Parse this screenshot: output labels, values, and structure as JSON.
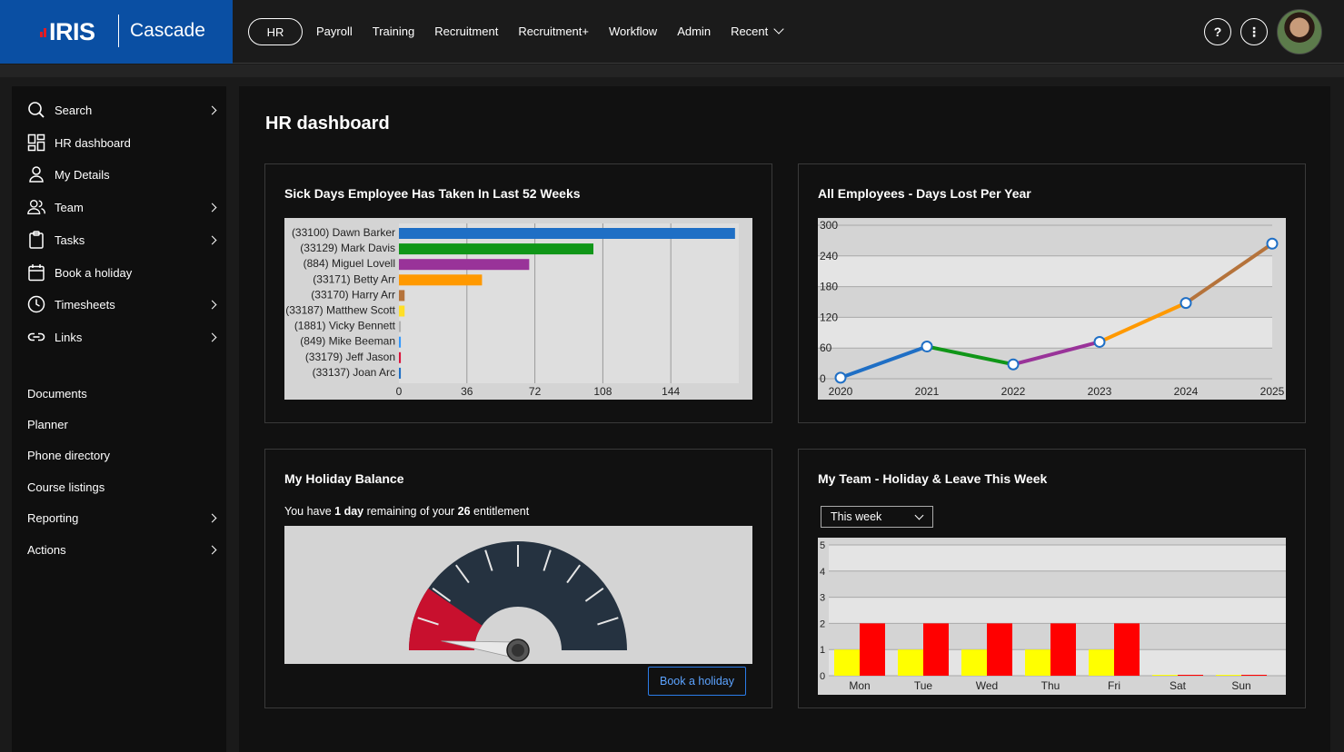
{
  "brand": {
    "logo": "IRIS",
    "product": "Cascade"
  },
  "nav": {
    "items": [
      "HR",
      "Payroll",
      "Training",
      "Recruitment",
      "Recruitment+",
      "Workflow",
      "Admin",
      "Recent"
    ],
    "active": "HR"
  },
  "top_icons": {
    "help": "?",
    "more": "⋮"
  },
  "sidebar": {
    "items": [
      {
        "label": "Search",
        "icon": "search-icon",
        "arrow": true
      },
      {
        "label": "HR dashboard",
        "icon": "dashboard-icon",
        "arrow": false
      },
      {
        "label": "My Details",
        "icon": "user-icon",
        "arrow": false
      },
      {
        "label": "Team",
        "icon": "team-icon",
        "arrow": true
      },
      {
        "label": "Tasks",
        "icon": "clipboard-icon",
        "arrow": true
      },
      {
        "label": "Book a holiday",
        "icon": "calendar-icon",
        "arrow": false
      },
      {
        "label": "Timesheets",
        "icon": "clock-icon",
        "arrow": true
      },
      {
        "label": "Links",
        "icon": "link-icon",
        "arrow": true
      }
    ],
    "plain": [
      {
        "label": "Documents",
        "arrow": false
      },
      {
        "label": "Planner",
        "arrow": false
      },
      {
        "label": "Phone directory",
        "arrow": false
      },
      {
        "label": "Course listings",
        "arrow": false
      },
      {
        "label": "Reporting",
        "arrow": true
      },
      {
        "label": "Actions",
        "arrow": true
      }
    ]
  },
  "page": {
    "title": "HR dashboard"
  },
  "cards": {
    "sick": {
      "title": "Sick Days Employee Has Taken In Last 52 Weeks"
    },
    "lost": {
      "title": "All Employees - Days Lost Per Year"
    },
    "balance": {
      "title": "My Holiday Balance",
      "text_prefix": "You have ",
      "days": "1 day",
      "text_mid": " remaining of your ",
      "entitlement": "26",
      "text_suffix": " entitlement",
      "book_label": "Book a holiday"
    },
    "team": {
      "title": "My Team - Holiday & Leave This Week",
      "select_value": "This week"
    }
  },
  "chart_data": [
    {
      "type": "bar",
      "orientation": "horizontal",
      "categories": [
        "(33100) Dawn Barker",
        "(33129) Mark Davis",
        "(884) Miguel Lovell",
        "(33171) Betty Arr",
        "(33170) Harry Arr",
        "(33187) Matthew Scott",
        "(1881) Vicky Bennett",
        "(849) Mike Beeman",
        "(33179) Jeff Jason",
        "(33137) Joan Arc"
      ],
      "values": [
        178,
        103,
        69,
        44,
        3,
        3,
        1,
        1,
        1,
        1
      ],
      "colors": [
        "#1f6fc5",
        "#109618",
        "#993399",
        "#ff9900",
        "#b5733b",
        "#ffdf26",
        "#b0b0b0",
        "#3399ff",
        "#dc143c",
        "#1f6fc5"
      ],
      "xticks": [
        0,
        36,
        72,
        108,
        144
      ],
      "xlim": [
        0,
        180
      ]
    },
    {
      "type": "line",
      "x": [
        "2020",
        "2021",
        "2022",
        "2023",
        "2024",
        "2025"
      ],
      "values": [
        2,
        63,
        28,
        72,
        148,
        264
      ],
      "segment_colors": [
        "#1f6fc5",
        "#109618",
        "#993399",
        "#ff9900",
        "#b5733b"
      ],
      "yticks": [
        0,
        60,
        120,
        180,
        240,
        300
      ],
      "ylim": [
        0,
        300
      ]
    },
    {
      "type": "gauge",
      "value": 1,
      "max": 26,
      "red_band": [
        0,
        5
      ],
      "colors": {
        "dial": "#253240",
        "band": "#c8102e"
      }
    },
    {
      "type": "bar",
      "categories": [
        "Mon",
        "Tue",
        "Wed",
        "Thu",
        "Fri",
        "Sat",
        "Sun"
      ],
      "series": [
        {
          "values": [
            1,
            1,
            1,
            1,
            1,
            0,
            0
          ],
          "color": "#ffff00"
        },
        {
          "values": [
            2,
            2,
            2,
            2,
            2,
            0,
            0
          ],
          "color": "#ff0000"
        }
      ],
      "yticks": [
        0,
        1,
        2,
        3,
        4,
        5
      ],
      "ylim": [
        0,
        5
      ]
    }
  ]
}
